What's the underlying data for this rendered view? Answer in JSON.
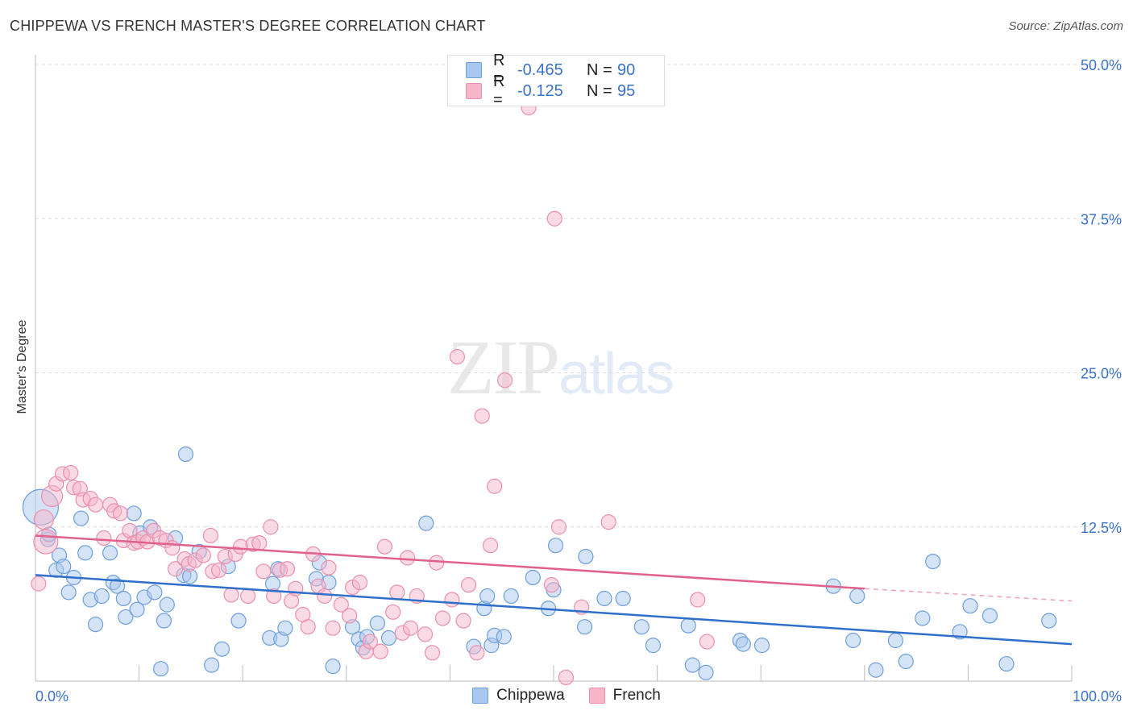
{
  "header": {
    "title": "CHIPPEWA VS FRENCH MASTER'S DEGREE CORRELATION CHART",
    "source": "Source: ZipAtlas.com"
  },
  "watermark": {
    "zip": "ZIP",
    "atlas": "atlas"
  },
  "legend_top": {
    "rows": [
      {
        "label": "R =",
        "r": "-0.465",
        "n_label": "N =",
        "n": "90"
      },
      {
        "label": "R =",
        "r": "-0.125",
        "n_label": "N =",
        "n": "95"
      }
    ]
  },
  "legend_bottom": [
    "Chippewa",
    "French"
  ],
  "colors": {
    "chippewa_fill": "#a9c8ee",
    "chippewa_stroke": "#6d9fdc",
    "chippewa_line": "#2f6fcc",
    "french_fill": "#f6b5c9",
    "french_stroke": "#ea8fae",
    "french_line": "#e0628c",
    "axis_text": "#3a72c8",
    "grid": "#dddddd"
  },
  "chart_data": {
    "type": "scatter",
    "title": "CHIPPEWA VS FRENCH MASTER'S DEGREE CORRELATION CHART",
    "xlabel": "",
    "ylabel": "Master's Degree",
    "xlim": [
      0,
      100
    ],
    "ylim": [
      0,
      50
    ],
    "x_tick_labels": [
      "0.0%",
      "100.0%"
    ],
    "y_ticks": [
      12.5,
      25.0,
      37.5,
      50.0
    ],
    "y_tick_labels": [
      "12.5%",
      "25.0%",
      "37.5%",
      "50.0%"
    ],
    "grid": true,
    "legend_placement": "top-center",
    "series": [
      {
        "name": "Chippewa",
        "r": -0.465,
        "n": 90,
        "trend": {
          "x": [
            0,
            100
          ],
          "y": [
            8.6,
            3.0
          ]
        },
        "points": [
          [
            0.5,
            14.1
          ],
          [
            1.2,
            11.5
          ],
          [
            1.3,
            11.9
          ],
          [
            2.0,
            9.0
          ],
          [
            2.3,
            10.2
          ],
          [
            2.7,
            9.3
          ],
          [
            3.2,
            7.2
          ],
          [
            3.7,
            8.4
          ],
          [
            4.4,
            13.2
          ],
          [
            4.8,
            10.4
          ],
          [
            5.3,
            6.6
          ],
          [
            5.8,
            4.6
          ],
          [
            6.4,
            6.9
          ],
          [
            7.2,
            10.4
          ],
          [
            7.5,
            8.0
          ],
          [
            7.9,
            7.7
          ],
          [
            8.5,
            6.7
          ],
          [
            8.7,
            5.2
          ],
          [
            9.5,
            13.6
          ],
          [
            9.8,
            5.8
          ],
          [
            10.1,
            12.0
          ],
          [
            10.5,
            6.8
          ],
          [
            11.1,
            12.5
          ],
          [
            11.5,
            7.2
          ],
          [
            12.1,
            1.0
          ],
          [
            12.7,
            6.2
          ],
          [
            12.4,
            4.9
          ],
          [
            13.5,
            11.6
          ],
          [
            14.3,
            8.6
          ],
          [
            14.5,
            18.4
          ],
          [
            14.9,
            8.5
          ],
          [
            15.8,
            10.5
          ],
          [
            17.0,
            1.3
          ],
          [
            18.0,
            2.6
          ],
          [
            18.6,
            9.3
          ],
          [
            19.6,
            4.9
          ],
          [
            22.6,
            3.5
          ],
          [
            22.9,
            7.9
          ],
          [
            23.4,
            9.1
          ],
          [
            23.7,
            3.4
          ],
          [
            24.1,
            4.3
          ],
          [
            27.1,
            8.3
          ],
          [
            27.4,
            9.6
          ],
          [
            28.3,
            8.0
          ],
          [
            28.7,
            1.2
          ],
          [
            30.6,
            4.4
          ],
          [
            31.2,
            3.4
          ],
          [
            31.6,
            2.7
          ],
          [
            32.0,
            3.6
          ],
          [
            33.0,
            4.7
          ],
          [
            34.1,
            3.5
          ],
          [
            37.7,
            12.8
          ],
          [
            42.3,
            2.8
          ],
          [
            43.3,
            5.9
          ],
          [
            43.6,
            6.9
          ],
          [
            44.0,
            2.9
          ],
          [
            44.3,
            3.7
          ],
          [
            45.2,
            3.6
          ],
          [
            45.9,
            6.9
          ],
          [
            48.0,
            8.4
          ],
          [
            49.5,
            5.9
          ],
          [
            50.0,
            7.4
          ],
          [
            50.2,
            11.0
          ],
          [
            53.0,
            4.4
          ],
          [
            53.1,
            10.1
          ],
          [
            54.9,
            6.7
          ],
          [
            56.7,
            6.7
          ],
          [
            58.5,
            4.4
          ],
          [
            59.6,
            2.9
          ],
          [
            63.0,
            4.5
          ],
          [
            63.4,
            1.3
          ],
          [
            64.7,
            0.7
          ],
          [
            68.0,
            3.3
          ],
          [
            68.3,
            3.0
          ],
          [
            70.1,
            2.9
          ],
          [
            77.0,
            7.7
          ],
          [
            78.9,
            3.3
          ],
          [
            79.3,
            6.9
          ],
          [
            81.1,
            0.9
          ],
          [
            83.0,
            3.3
          ],
          [
            84.0,
            1.6
          ],
          [
            85.6,
            5.1
          ],
          [
            86.6,
            9.7
          ],
          [
            89.2,
            4.0
          ],
          [
            90.2,
            6.1
          ],
          [
            92.1,
            5.3
          ],
          [
            93.7,
            1.4
          ],
          [
            97.8,
            4.9
          ]
        ]
      },
      {
        "name": "French",
        "r": -0.125,
        "n": 95,
        "trend": {
          "x": [
            0,
            80
          ],
          "y": [
            11.8,
            7.5
          ]
        },
        "trend_dashed": {
          "x": [
            80,
            100
          ],
          "y": [
            7.5,
            6.5
          ]
        },
        "points": [
          [
            0.3,
            7.9
          ],
          [
            0.8,
            13.1
          ],
          [
            1.0,
            11.3
          ],
          [
            1.6,
            15.0
          ],
          [
            2.0,
            16.0
          ],
          [
            2.6,
            16.8
          ],
          [
            3.4,
            16.9
          ],
          [
            3.7,
            15.7
          ],
          [
            4.3,
            15.6
          ],
          [
            4.6,
            14.7
          ],
          [
            5.3,
            14.8
          ],
          [
            5.8,
            14.3
          ],
          [
            6.6,
            11.6
          ],
          [
            7.2,
            14.3
          ],
          [
            7.6,
            13.8
          ],
          [
            8.2,
            13.6
          ],
          [
            8.5,
            11.4
          ],
          [
            9.1,
            12.2
          ],
          [
            9.5,
            11.2
          ],
          [
            9.9,
            11.3
          ],
          [
            10.4,
            11.6
          ],
          [
            10.8,
            11.3
          ],
          [
            11.4,
            12.2
          ],
          [
            12.0,
            11.6
          ],
          [
            12.6,
            11.4
          ],
          [
            13.2,
            10.8
          ],
          [
            13.5,
            9.1
          ],
          [
            14.4,
            9.9
          ],
          [
            14.8,
            9.5
          ],
          [
            15.4,
            9.8
          ],
          [
            16.2,
            10.2
          ],
          [
            16.9,
            11.8
          ],
          [
            17.1,
            8.9
          ],
          [
            17.7,
            9.0
          ],
          [
            18.3,
            10.1
          ],
          [
            18.9,
            7.0
          ],
          [
            19.3,
            10.3
          ],
          [
            19.8,
            10.9
          ],
          [
            20.5,
            6.9
          ],
          [
            21.0,
            11.1
          ],
          [
            21.6,
            11.2
          ],
          [
            22.0,
            8.9
          ],
          [
            22.7,
            12.5
          ],
          [
            23.0,
            6.9
          ],
          [
            23.6,
            9.0
          ],
          [
            24.3,
            9.1
          ],
          [
            24.7,
            6.5
          ],
          [
            25.1,
            7.5
          ],
          [
            25.8,
            5.4
          ],
          [
            26.3,
            4.4
          ],
          [
            26.8,
            10.3
          ],
          [
            27.3,
            7.7
          ],
          [
            27.9,
            6.9
          ],
          [
            28.3,
            9.2
          ],
          [
            28.7,
            4.3
          ],
          [
            29.5,
            6.2
          ],
          [
            30.3,
            5.3
          ],
          [
            30.6,
            7.6
          ],
          [
            31.3,
            8.0
          ],
          [
            31.9,
            2.4
          ],
          [
            32.3,
            3.2
          ],
          [
            33.3,
            2.4
          ],
          [
            33.7,
            10.9
          ],
          [
            34.5,
            5.6
          ],
          [
            34.9,
            7.2
          ],
          [
            35.4,
            3.9
          ],
          [
            35.9,
            10.0
          ],
          [
            36.2,
            4.3
          ],
          [
            36.8,
            6.9
          ],
          [
            37.6,
            3.8
          ],
          [
            38.3,
            2.3
          ],
          [
            38.7,
            9.6
          ],
          [
            39.3,
            5.1
          ],
          [
            40.2,
            6.6
          ],
          [
            40.7,
            26.3
          ],
          [
            41.3,
            4.9
          ],
          [
            41.8,
            7.8
          ],
          [
            42.6,
            2.3
          ],
          [
            43.1,
            21.5
          ],
          [
            43.9,
            11.0
          ],
          [
            44.3,
            15.8
          ],
          [
            45.3,
            24.4
          ],
          [
            47.6,
            46.5
          ],
          [
            49.8,
            7.8
          ],
          [
            50.1,
            37.5
          ],
          [
            50.5,
            12.5
          ],
          [
            51.2,
            0.3
          ],
          [
            52.7,
            6.0
          ],
          [
            55.3,
            12.9
          ],
          [
            63.9,
            6.6
          ],
          [
            64.8,
            3.2
          ]
        ]
      }
    ]
  }
}
